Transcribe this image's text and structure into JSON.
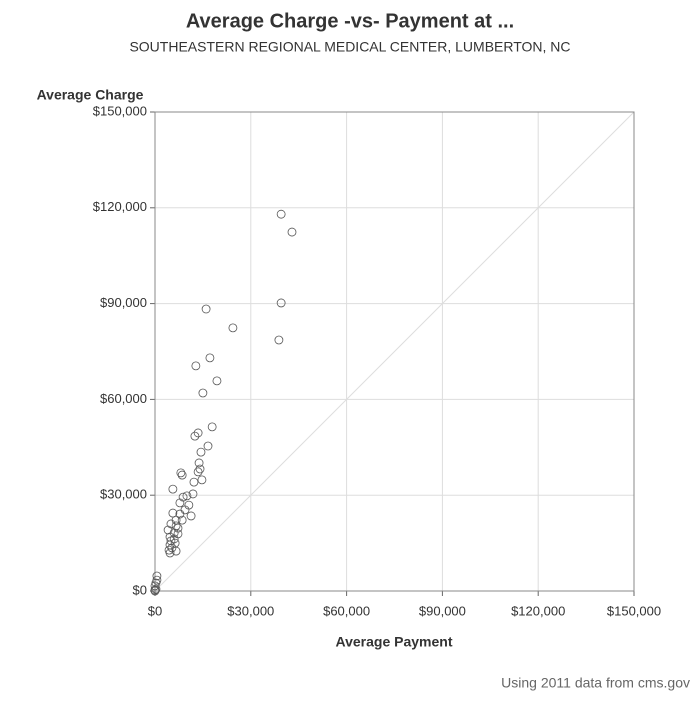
{
  "chart_data": {
    "type": "scatter",
    "title": "Average Charge -vs- Payment at ...",
    "subtitle": "SOUTHEASTERN REGIONAL MEDICAL CENTER, LUMBERTON, NC",
    "x_label": "Average Payment",
    "y_label": "Average Charge",
    "footnote": "Using 2011 data from cms.gov",
    "marker_color": "#555555",
    "grid": true,
    "xlim": [
      0,
      150000
    ],
    "ylim": [
      0,
      150000
    ],
    "xticks": [
      {
        "value": 0,
        "label": "$0"
      },
      {
        "value": 30000,
        "label": "$30,000"
      },
      {
        "value": 60000,
        "label": "$60,000"
      },
      {
        "value": 90000,
        "label": "$90,000"
      },
      {
        "value": 120000,
        "label": "$120,000"
      },
      {
        "value": 150000,
        "label": "$150,000"
      }
    ],
    "yticks": [
      {
        "value": 0,
        "label": "$0"
      },
      {
        "value": 30000,
        "label": "$30,000"
      },
      {
        "value": 60000,
        "label": "$60,000"
      },
      {
        "value": 90000,
        "label": "$90,000"
      },
      {
        "value": 120000,
        "label": "$120,000"
      },
      {
        "value": 150000,
        "label": "$150,000"
      }
    ],
    "x": [
      39500,
      42900,
      39500,
      38800,
      16000,
      24400,
      17200,
      12800,
      19400,
      15000,
      17900,
      13500,
      12500,
      16600,
      14400,
      13800,
      14100,
      13500,
      8100,
      8500,
      14700,
      12200,
      5600,
      11900,
      10000,
      8800,
      7800,
      10600,
      9400,
      5600,
      7800,
      11300,
      6600,
      8500,
      5000,
      6600,
      7200,
      4100,
      6000,
      7200,
      4700,
      6000,
      5000,
      6300,
      4700,
      5300,
      4400,
      6600,
      4700,
      600,
      600,
      300,
      0,
      300,
      0,
      0
    ],
    "y": [
      118000,
      112400,
      90200,
      78600,
      88300,
      82400,
      73000,
      70500,
      65800,
      62000,
      51400,
      49500,
      48500,
      45400,
      43500,
      40100,
      38200,
      37300,
      37000,
      36300,
      34800,
      34100,
      31900,
      30400,
      29800,
      29400,
      27600,
      26900,
      25400,
      24400,
      24100,
      23500,
      22200,
      22200,
      21000,
      20400,
      19700,
      19100,
      18200,
      17900,
      16900,
      16300,
      15700,
      15000,
      14400,
      13500,
      12800,
      12500,
      11900,
      4700,
      3400,
      2500,
      1600,
      600,
      0,
      300
    ]
  }
}
